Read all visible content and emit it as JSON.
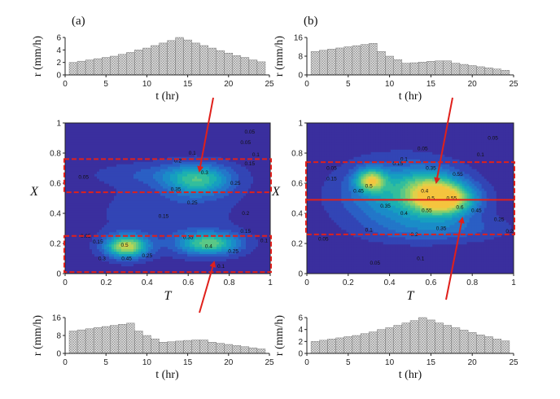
{
  "panel_labels": [
    "(a)",
    "(b)"
  ],
  "chart_data": [
    {
      "name": "hist-a-top",
      "type": "bar",
      "x": [
        1,
        2,
        3,
        4,
        5,
        6,
        7,
        8,
        9,
        10,
        11,
        12,
        13,
        14,
        15,
        16,
        17,
        18,
        19,
        20,
        21,
        22,
        23,
        24
      ],
      "values": [
        2.0,
        2.2,
        2.4,
        2.6,
        2.8,
        3.0,
        3.3,
        3.6,
        4.0,
        4.3,
        4.7,
        5.1,
        5.5,
        6.0,
        5.6,
        5.1,
        4.7,
        4.3,
        3.9,
        3.5,
        3.1,
        2.8,
        2.4,
        2.1
      ],
      "xlabel": "t (hr)",
      "ylabel": "r (mm/h)",
      "xlim": [
        0,
        25
      ],
      "ylim": [
        0,
        6
      ],
      "xticks": [
        "0",
        "5",
        "10",
        "15",
        "20",
        "25"
      ],
      "yticks": [
        "0",
        "2",
        "4",
        "6"
      ]
    },
    {
      "name": "hist-b-top",
      "type": "bar",
      "x": [
        1,
        2,
        3,
        4,
        5,
        6,
        7,
        8,
        9,
        10,
        11,
        12,
        13,
        14,
        15,
        16,
        17,
        18,
        19,
        20,
        21,
        22,
        23,
        24
      ],
      "values": [
        10.0,
        10.5,
        11.0,
        11.5,
        12.0,
        12.5,
        13.0,
        13.5,
        10.0,
        8.0,
        6.5,
        5.0,
        5.2,
        5.5,
        5.8,
        6.0,
        6.0,
        5.0,
        4.5,
        4.0,
        3.5,
        3.0,
        2.5,
        2.0
      ],
      "xlabel": "t (hr)",
      "ylabel": "r (mm/h)",
      "xlim": [
        0,
        25
      ],
      "ylim": [
        0,
        16
      ],
      "xticks": [
        "0",
        "5",
        "10",
        "15",
        "20",
        "25"
      ],
      "yticks": [
        "0",
        "8",
        "16"
      ]
    },
    {
      "name": "hist-a-bottom",
      "type": "bar",
      "x": [
        1,
        2,
        3,
        4,
        5,
        6,
        7,
        8,
        9,
        10,
        11,
        12,
        13,
        14,
        15,
        16,
        17,
        18,
        19,
        20,
        21,
        22,
        23,
        24
      ],
      "values": [
        10.0,
        10.5,
        11.0,
        11.5,
        12.0,
        12.5,
        13.0,
        13.5,
        10.0,
        8.0,
        6.5,
        5.0,
        5.2,
        5.5,
        5.8,
        6.0,
        6.0,
        5.0,
        4.5,
        4.0,
        3.5,
        3.0,
        2.5,
        2.0
      ],
      "xlabel": "t (hr)",
      "ylabel": "r (mm/h)",
      "xlim": [
        0,
        25
      ],
      "ylim": [
        0,
        16
      ],
      "xticks": [
        "0",
        "5",
        "10",
        "15",
        "20",
        "25"
      ],
      "yticks": [
        "0",
        "8",
        "16"
      ]
    },
    {
      "name": "hist-b-bottom",
      "type": "bar",
      "x": [
        1,
        2,
        3,
        4,
        5,
        6,
        7,
        8,
        9,
        10,
        11,
        12,
        13,
        14,
        15,
        16,
        17,
        18,
        19,
        20,
        21,
        22,
        23,
        24
      ],
      "values": [
        2.0,
        2.2,
        2.4,
        2.6,
        2.8,
        3.0,
        3.3,
        3.6,
        4.0,
        4.3,
        4.7,
        5.1,
        5.5,
        6.0,
        5.6,
        5.1,
        4.7,
        4.3,
        3.9,
        3.5,
        3.1,
        2.8,
        2.4,
        2.1
      ],
      "xlabel": "t (hr)",
      "ylabel": "r (mm/h)",
      "xlim": [
        0,
        25
      ],
      "ylim": [
        0,
        6
      ],
      "xticks": [
        "0",
        "5",
        "10",
        "15",
        "20",
        "25"
      ],
      "yticks": [
        "0",
        "2",
        "4",
        "6"
      ]
    },
    {
      "name": "contour-a",
      "type": "heatmap",
      "xlabel": "T",
      "ylabel": "X",
      "xlim": [
        0,
        1
      ],
      "ylim": [
        0,
        1
      ],
      "xticks": [
        "0",
        "0.2",
        "0.4",
        "0.6",
        "0.8",
        "1"
      ],
      "yticks": [
        "0",
        "0.2",
        "0.4",
        "0.6",
        "0.8",
        "1"
      ],
      "levels": [
        0.05,
        0.1,
        0.15,
        0.2,
        0.25,
        0.3,
        0.35,
        0.4,
        0.45,
        0.5,
        0.55
      ],
      "colors": [
        "#3a2f9e",
        "#3245b5",
        "#2a5fc4",
        "#2377c9",
        "#1a8cc8",
        "#169fc0",
        "#1cb1b0",
        "#33be9c",
        "#5bc886",
        "#88cf6c",
        "#b7d456",
        "#e0d04a",
        "#f5c43e"
      ],
      "hotspots": [
        {
          "t": 0.65,
          "x": 0.62,
          "amp": 0.33,
          "st": 0.11,
          "sx": 0.07
        },
        {
          "t": 0.45,
          "x": 0.66,
          "amp": 0.07,
          "st": 0.2,
          "sx": 0.05
        },
        {
          "t": 0.3,
          "x": 0.18,
          "amp": 0.52,
          "st": 0.07,
          "sx": 0.05
        },
        {
          "t": 0.7,
          "x": 0.2,
          "amp": 0.4,
          "st": 0.1,
          "sx": 0.05
        },
        {
          "t": 0.5,
          "x": 0.4,
          "amp": 0.06,
          "st": 0.25,
          "sx": 0.18
        }
      ],
      "base": 0.02,
      "contour_labels": [
        {
          "t": 0.9,
          "x": 0.94,
          "text": "0.05"
        },
        {
          "t": 0.88,
          "x": 0.87,
          "text": "0.05"
        },
        {
          "t": 0.93,
          "x": 0.79,
          "text": "0.1"
        },
        {
          "t": 0.9,
          "x": 0.73,
          "text": "0.15"
        },
        {
          "t": 0.62,
          "x": 0.8,
          "text": "0.1"
        },
        {
          "t": 0.55,
          "x": 0.75,
          "text": "0.2"
        },
        {
          "t": 0.68,
          "x": 0.67,
          "text": "0.3"
        },
        {
          "t": 0.54,
          "x": 0.56,
          "text": "0.35"
        },
        {
          "t": 0.83,
          "x": 0.6,
          "text": "0.25"
        },
        {
          "t": 0.09,
          "x": 0.64,
          "text": "0.05"
        },
        {
          "t": 0.62,
          "x": 0.47,
          "text": "0.25"
        },
        {
          "t": 0.48,
          "x": 0.38,
          "text": "0.15"
        },
        {
          "t": 0.88,
          "x": 0.4,
          "text": "0.2"
        },
        {
          "t": 0.1,
          "x": 0.25,
          "text": "0.05"
        },
        {
          "t": 0.16,
          "x": 0.21,
          "text": "0.15"
        },
        {
          "t": 0.29,
          "x": 0.19,
          "text": "0.5"
        },
        {
          "t": 0.18,
          "x": 0.1,
          "text": "0.3"
        },
        {
          "t": 0.3,
          "x": 0.1,
          "text": "0.45"
        },
        {
          "t": 0.4,
          "x": 0.12,
          "text": "0.25"
        },
        {
          "t": 0.6,
          "x": 0.24,
          "text": "0.35"
        },
        {
          "t": 0.7,
          "x": 0.18,
          "text": "0.4"
        },
        {
          "t": 0.82,
          "x": 0.15,
          "text": "0.25"
        },
        {
          "t": 0.88,
          "x": 0.28,
          "text": "0.15"
        },
        {
          "t": 0.76,
          "x": 0.05,
          "text": "0.1"
        },
        {
          "t": 0.97,
          "x": 0.22,
          "text": "0.1"
        }
      ],
      "highlight_bands": [
        {
          "x_from": 0.54,
          "x_to": 0.76,
          "style": "dashed"
        },
        {
          "x_from": 0.01,
          "x_to": 0.25,
          "style": "dashed"
        }
      ],
      "arrows": [
        {
          "from": "hist-a-top",
          "to": "band-upper"
        },
        {
          "from": "hist-a-bottom",
          "to": "band-lower"
        }
      ]
    },
    {
      "name": "contour-b",
      "type": "heatmap",
      "xlabel": "T",
      "ylabel": "X",
      "xlim": [
        0,
        1
      ],
      "ylim": [
        0,
        1
      ],
      "xticks": [
        "0",
        "0.2",
        "0.4",
        "0.6",
        "0.8",
        "1"
      ],
      "yticks": [
        "0",
        "0.2",
        "0.4",
        "0.6",
        "0.8",
        "1"
      ],
      "levels": [
        0.05,
        0.1,
        0.15,
        0.2,
        0.25,
        0.3,
        0.35,
        0.4,
        0.45,
        0.5,
        0.55,
        0.6
      ],
      "colors": [
        "#3a2f9e",
        "#3245b5",
        "#2a5fc4",
        "#2377c9",
        "#1a8cc8",
        "#169fc0",
        "#1cb1b0",
        "#33be9c",
        "#5bc886",
        "#88cf6c",
        "#b7d456",
        "#e0d04a",
        "#f5c43e",
        "#f9a534"
      ],
      "hotspots": [
        {
          "t": 0.31,
          "x": 0.62,
          "amp": 0.44,
          "st": 0.05,
          "sx": 0.05
        },
        {
          "t": 0.66,
          "x": 0.49,
          "amp": 0.62,
          "st": 0.1,
          "sx": 0.07
        },
        {
          "t": 0.6,
          "x": 0.6,
          "amp": 0.2,
          "st": 0.1,
          "sx": 0.07
        },
        {
          "t": 0.45,
          "x": 0.52,
          "amp": 0.28,
          "st": 0.18,
          "sx": 0.14
        },
        {
          "t": 0.65,
          "x": 0.3,
          "amp": 0.12,
          "st": 0.2,
          "sx": 0.06
        }
      ],
      "base": 0.02,
      "contour_labels": [
        {
          "t": 0.9,
          "x": 0.9,
          "text": "0.05"
        },
        {
          "t": 0.56,
          "x": 0.83,
          "text": "0.05"
        },
        {
          "t": 0.84,
          "x": 0.79,
          "text": "0.1"
        },
        {
          "t": 0.47,
          "x": 0.76,
          "text": "0.1"
        },
        {
          "t": 0.44,
          "x": 0.73,
          "text": "0.15"
        },
        {
          "t": 0.6,
          "x": 0.7,
          "text": "0.35"
        },
        {
          "t": 0.73,
          "x": 0.66,
          "text": "0.55"
        },
        {
          "t": 0.12,
          "x": 0.7,
          "text": "0.05"
        },
        {
          "t": 0.12,
          "x": 0.63,
          "text": "0.15"
        },
        {
          "t": 0.3,
          "x": 0.58,
          "text": "0.5"
        },
        {
          "t": 0.25,
          "x": 0.55,
          "text": "0.45"
        },
        {
          "t": 0.57,
          "x": 0.55,
          "text": "0.4"
        },
        {
          "t": 0.38,
          "x": 0.45,
          "text": "0.35"
        },
        {
          "t": 0.47,
          "x": 0.4,
          "text": "0.4"
        },
        {
          "t": 0.6,
          "x": 0.5,
          "text": "0.5"
        },
        {
          "t": 0.7,
          "x": 0.5,
          "text": "0.55"
        },
        {
          "t": 0.74,
          "x": 0.44,
          "text": "0.6"
        },
        {
          "t": 0.58,
          "x": 0.42,
          "text": "0.55"
        },
        {
          "t": 0.82,
          "x": 0.42,
          "text": "0.45"
        },
        {
          "t": 0.93,
          "x": 0.36,
          "text": "0.25"
        },
        {
          "t": 0.98,
          "x": 0.28,
          "text": "0.2"
        },
        {
          "t": 0.3,
          "x": 0.29,
          "text": "0.1"
        },
        {
          "t": 0.52,
          "x": 0.26,
          "text": "0.2"
        },
        {
          "t": 0.65,
          "x": 0.3,
          "text": "0.35"
        },
        {
          "t": 0.55,
          "x": 0.1,
          "text": "0.1"
        },
        {
          "t": 0.33,
          "x": 0.07,
          "text": "0.05"
        },
        {
          "t": 0.08,
          "x": 0.23,
          "text": "0.05"
        }
      ],
      "highlight_bands": [
        {
          "x_from": 0.26,
          "x_to": 0.74,
          "style": "dashed"
        }
      ],
      "split_line_x": 0.49,
      "arrows": [
        {
          "from": "hist-b-top",
          "to": "band-upper"
        },
        {
          "from": "hist-b-bottom",
          "to": "band-lower"
        }
      ]
    }
  ]
}
